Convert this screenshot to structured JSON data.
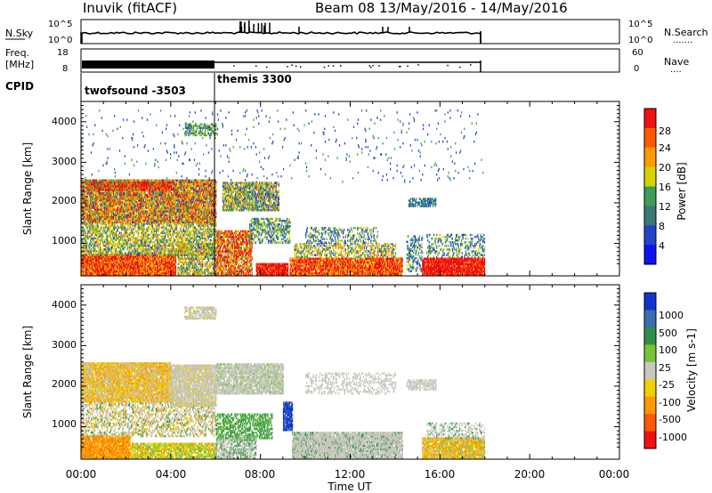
{
  "header": {
    "station": "Inuvik (fitACF)",
    "beam_dates": "Beam 08 13/May/2016 - 14/May/2016"
  },
  "nsky_panel": {
    "left_label": "N.Sky",
    "left_ticks": [
      "10^5",
      "10^0"
    ],
    "right_ticks": [
      "10^5",
      "10^0"
    ],
    "right_label": "N.Search",
    "right_dots": "......."
  },
  "freq_panel": {
    "left_label_1": "Freq.",
    "left_label_2": "[MHz]",
    "left_ticks": [
      "18",
      "8"
    ],
    "right_ticks": [
      "60",
      "0"
    ],
    "right_label": "Nave",
    "right_dots": "...."
  },
  "cpid": {
    "label": "CPID",
    "modes": [
      "twofsound -3503",
      "themis 3300"
    ]
  },
  "colors": {
    "red": "#ee1111",
    "orange": "#ff8c00",
    "yellow_green": "#c9c93a",
    "green": "#3c9a56",
    "blue": "#2222dd",
    "gray": "#bcbcb2"
  },
  "chart_data": [
    {
      "type": "heatmap",
      "quantity": "power",
      "xlabel": "",
      "ylabel": "Slant Range [km]",
      "ylim": [
        200,
        4500
      ],
      "y_ticks": [
        "1000",
        "2000",
        "3000",
        "4000"
      ],
      "colorbar": {
        "label": "Power [dB]",
        "ticks": [
          "28",
          "24",
          "20",
          "16",
          "12",
          "8",
          "4"
        ],
        "colors": [
          "#ee1111",
          "#ff5a00",
          "#ff9a00",
          "#d6d200",
          "#3d9c55",
          "#3a7a78",
          "#2244cc",
          "#1111ee"
        ]
      },
      "data_extent_hours": [
        0,
        18
      ]
    },
    {
      "type": "heatmap",
      "quantity": "velocity",
      "xlabel": "Time UT",
      "ylabel": "Slant Range [km]",
      "ylim": [
        200,
        4500
      ],
      "y_ticks": [
        "1000",
        "2000",
        "3000",
        "4000"
      ],
      "x_ticks": [
        "00:00",
        "04:00",
        "08:00",
        "12:00",
        "16:00",
        "20:00",
        "00:00"
      ],
      "colorbar": {
        "label": "Velocity [m s-1]",
        "ticks": [
          "1000",
          "500",
          "100",
          "25",
          "-25",
          "-100",
          "-500",
          "-1000"
        ],
        "colors": [
          "#1133cc",
          "#3a6fb0",
          "#2f8f4a",
          "#77c43a",
          "#c8c8c0",
          "#f0d000",
          "#ff9a00",
          "#ff5a00",
          "#ee1111"
        ]
      },
      "data_extent_hours": [
        0,
        18
      ]
    }
  ]
}
